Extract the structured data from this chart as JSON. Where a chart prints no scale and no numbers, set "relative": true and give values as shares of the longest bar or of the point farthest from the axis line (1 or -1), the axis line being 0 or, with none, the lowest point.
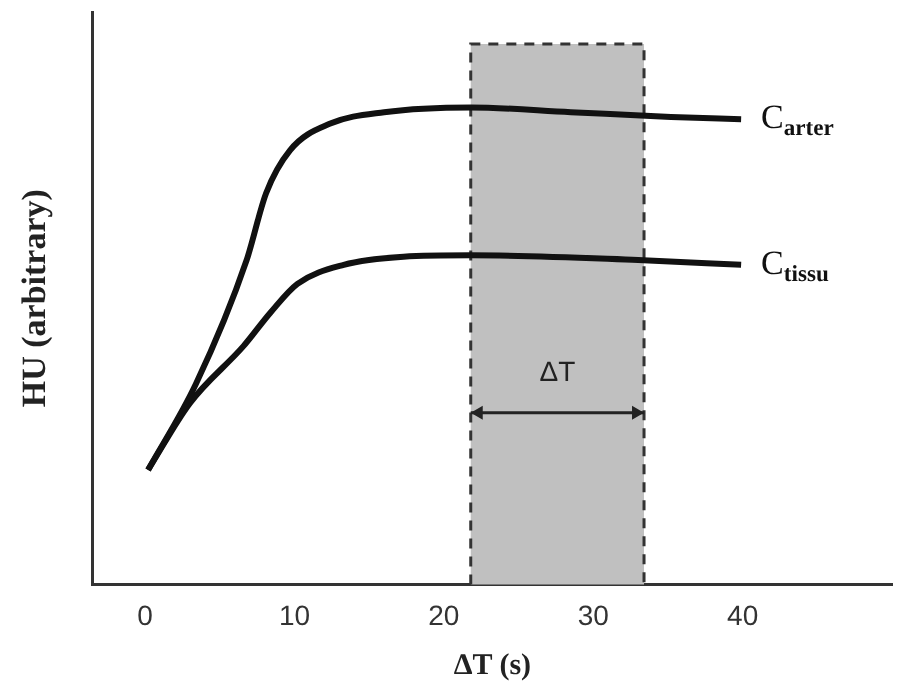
{
  "chart_data": {
    "type": "line",
    "relative": true,
    "xlabel": "ΔT (s)",
    "ylabel": "HU (arbitrary)",
    "xlim": [
      -3.5,
      50
    ],
    "xticks": [
      0,
      10,
      20,
      30,
      40
    ],
    "grid": false,
    "legend": false,
    "series": [
      {
        "name": "C$_{arter}$",
        "color": "#111111",
        "x": [
          0.2,
          3.4,
          6.8,
          8.1,
          9.7,
          12.4,
          16,
          21.8,
          28.5,
          35.2,
          39.9
        ],
        "values": [
          0.24,
          0.42,
          0.68,
          0.82,
          0.91,
          0.966,
          0.99,
          1,
          0.99,
          0.98,
          0.975
        ]
      },
      {
        "name": "C$_{tissu}$",
        "color": "#111111",
        "x": [
          0.2,
          3,
          6.6,
          8.4,
          10.2,
          13.3,
          17.3,
          21.8,
          33,
          39.9
        ],
        "values": [
          0.24,
          0.38,
          0.5,
          0.57,
          0.63,
          0.67,
          0.687,
          0.69,
          0.68,
          0.67
        ]
      }
    ],
    "bands": [
      {
        "axis": "x",
        "from": 21.8,
        "to": 33.4,
        "color": "#c0c0c0"
      }
    ],
    "annotations": [
      "ΔT"
    ]
  }
}
